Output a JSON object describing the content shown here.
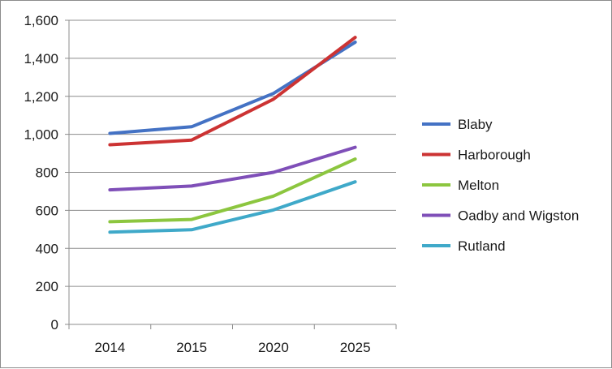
{
  "chart_data": {
    "type": "line",
    "title": "",
    "xlabel": "",
    "ylabel": "",
    "categories": [
      "2014",
      "2015",
      "2020",
      "2025"
    ],
    "ylim": [
      0,
      1600
    ],
    "yticks": [
      0,
      200,
      400,
      600,
      800,
      1000,
      1200,
      1400,
      1600
    ],
    "ytick_labels": [
      "0",
      "200",
      "400",
      "600",
      "800",
      "1,000",
      "1,200",
      "1,400",
      "1,600"
    ],
    "grid": "horizontal",
    "legend_position": "right",
    "series": [
      {
        "name": "Blaby",
        "color": "#4472c4",
        "values": [
          1005,
          1040,
          1215,
          1485
        ]
      },
      {
        "name": "Harborough",
        "color": "#cc3333",
        "values": [
          945,
          970,
          1185,
          1510
        ]
      },
      {
        "name": "Melton",
        "color": "#8cc63f",
        "values": [
          540,
          552,
          675,
          870
        ]
      },
      {
        "name": "Oadby and Wigston",
        "color": "#7f4fb8",
        "values": [
          708,
          728,
          800,
          932
        ]
      },
      {
        "name": "Rutland",
        "color": "#3fa9c9",
        "values": [
          485,
          498,
          602,
          750
        ]
      }
    ]
  }
}
